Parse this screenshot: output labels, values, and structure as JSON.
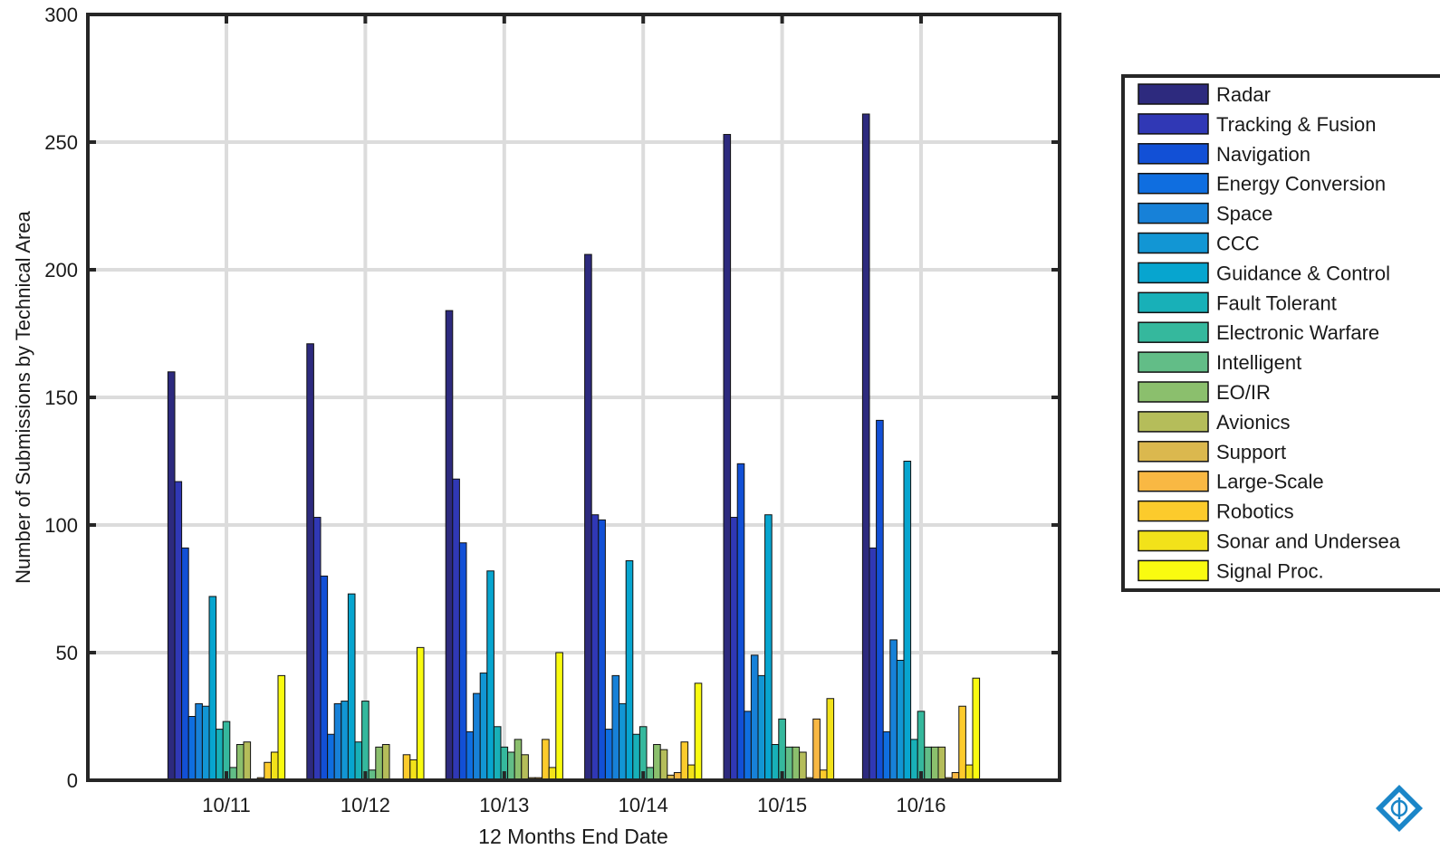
{
  "chart_data": {
    "type": "bar",
    "title": "",
    "xlabel": "12 Months End Date",
    "ylabel": "Number of Submissions by Technical Area",
    "ylim": [
      0,
      300
    ],
    "yticks": [
      0,
      50,
      100,
      150,
      200,
      250,
      300
    ],
    "grid": true,
    "legend_position": "right",
    "categories": [
      "10/11",
      "10/12",
      "10/13",
      "10/14",
      "10/15",
      "10/16"
    ],
    "series": [
      {
        "name": "Radar",
        "color": "#2d2a7e",
        "values": [
          160,
          171,
          184,
          206,
          253,
          261
        ]
      },
      {
        "name": "Tracking & Fusion",
        "color": "#3038b5",
        "values": [
          117,
          103,
          118,
          104,
          103,
          91
        ]
      },
      {
        "name": "Navigation",
        "color": "#1250d6",
        "values": [
          91,
          80,
          93,
          102,
          124,
          141
        ]
      },
      {
        "name": "Energy Conversion",
        "color": "#0f6ee0",
        "values": [
          25,
          18,
          19,
          20,
          27,
          19
        ]
      },
      {
        "name": "Space",
        "color": "#1781d8",
        "values": [
          30,
          30,
          34,
          41,
          49,
          55
        ]
      },
      {
        "name": "CCC",
        "color": "#1296d4",
        "values": [
          29,
          31,
          42,
          30,
          41,
          47
        ]
      },
      {
        "name": "Guidance & Control",
        "color": "#07a5cf",
        "values": [
          72,
          73,
          82,
          86,
          104,
          125
        ]
      },
      {
        "name": "Fault Tolerant",
        "color": "#18b0b8",
        "values": [
          20,
          15,
          21,
          18,
          14,
          16
        ]
      },
      {
        "name": "Electronic Warfare",
        "color": "#35b89d",
        "values": [
          23,
          31,
          13,
          21,
          24,
          27
        ]
      },
      {
        "name": "Intelligent",
        "color": "#62bd87",
        "values": [
          5,
          4,
          11,
          5,
          13,
          13
        ]
      },
      {
        "name": "EO/IR",
        "color": "#8bbf6d",
        "values": [
          14,
          13,
          16,
          14,
          13,
          13
        ]
      },
      {
        "name": "Avionics",
        "color": "#b5bd5a",
        "values": [
          15,
          14,
          10,
          12,
          11,
          13
        ]
      },
      {
        "name": "Support",
        "color": "#dbb84e",
        "values": [
          0,
          0,
          1,
          2,
          1,
          1
        ]
      },
      {
        "name": "Large-Scale",
        "color": "#f9b843",
        "values": [
          1,
          0,
          1,
          3,
          24,
          3
        ]
      },
      {
        "name": "Robotics",
        "color": "#fccb2c",
        "values": [
          7,
          10,
          16,
          15,
          4,
          29
        ]
      },
      {
        "name": "Sonar and Undersea",
        "color": "#f2e21a",
        "values": [
          11,
          8,
          5,
          6,
          32,
          6
        ]
      },
      {
        "name": "Signal Proc.",
        "color": "#f9fb10",
        "values": [
          41,
          52,
          50,
          38,
          0,
          40
        ]
      }
    ]
  }
}
